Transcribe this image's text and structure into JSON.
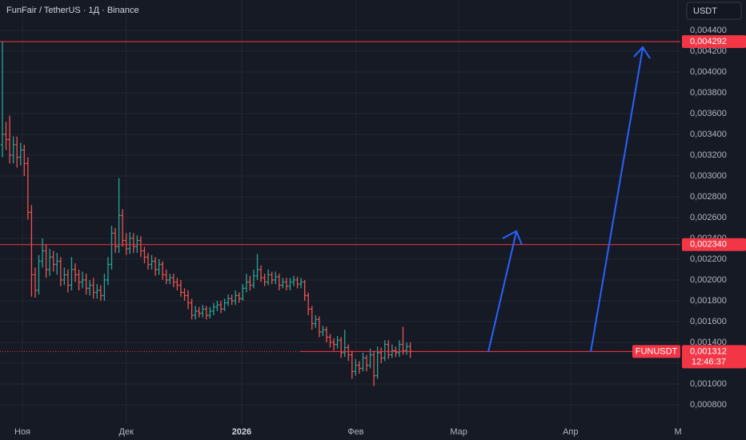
{
  "chart_data": {
    "type": "ohlc",
    "title": "FunFair / TetherUS · 1Д · Binance",
    "currency": "USDT",
    "up_color": "#26a69a",
    "down_color": "#ef5350",
    "level_color": "#f23645",
    "grid": true,
    "open": [
      0.0033,
      0.0034,
      0.00335,
      0.0032,
      0.0033,
      0.00318,
      0.00325,
      0.00312,
      0.00265,
      0.00205,
      0.0019,
      0.00218,
      0.00228,
      0.0021,
      0.00222,
      0.00215,
      0.00218,
      0.002,
      0.00205,
      0.00195,
      0.0021,
      0.00205,
      0.00198,
      0.002,
      0.00192,
      0.00195,
      0.00188,
      0.0019,
      0.00185,
      0.002,
      0.00215,
      0.00245,
      0.00232,
      0.00262,
      0.00238,
      0.0023,
      0.0024,
      0.00232,
      0.00238,
      0.00228,
      0.00222,
      0.00215,
      0.00218,
      0.0021,
      0.00215,
      0.00205,
      0.002,
      0.00202,
      0.00198,
      0.00195,
      0.00188,
      0.00185,
      0.00178,
      0.00166,
      0.0017,
      0.00168,
      0.00172,
      0.00166,
      0.0017,
      0.00174,
      0.00176,
      0.00172,
      0.00178,
      0.00182,
      0.0018,
      0.00185,
      0.00182,
      0.00192,
      0.00198,
      0.00195,
      0.00204,
      0.0021,
      0.00202,
      0.00198,
      0.00205,
      0.002,
      0.00203,
      0.00195,
      0.00198,
      0.00194,
      0.00198,
      0.002,
      0.00196,
      0.00198,
      0.00185,
      0.00172,
      0.00158,
      0.00162,
      0.0015,
      0.00152,
      0.00145,
      0.0014,
      0.00138,
      0.00142,
      0.0013,
      0.00135,
      0.00128,
      0.00112,
      0.00118,
      0.00115,
      0.00125,
      0.00118,
      0.00128,
      0.00108,
      0.0013,
      0.00125,
      0.00138,
      0.00128,
      0.00132,
      0.0013,
      0.00138,
      0.00132,
      0.00136
    ],
    "high": [
      0.00429,
      0.00352,
      0.00358,
      0.00338,
      0.00338,
      0.00332,
      0.0033,
      0.00318,
      0.00272,
      0.00212,
      0.00224,
      0.0024,
      0.00234,
      0.0023,
      0.00228,
      0.00226,
      0.00222,
      0.00212,
      0.0021,
      0.00222,
      0.00216,
      0.0021,
      0.00208,
      0.00206,
      0.002,
      0.00202,
      0.00196,
      0.00195,
      0.00206,
      0.00222,
      0.00252,
      0.0025,
      0.00298,
      0.00268,
      0.00245,
      0.00246,
      0.00245,
      0.00243,
      0.00242,
      0.00232,
      0.00226,
      0.00224,
      0.00222,
      0.0022,
      0.00218,
      0.0021,
      0.00206,
      0.00206,
      0.00202,
      0.002,
      0.00192,
      0.0019,
      0.00182,
      0.00175,
      0.00174,
      0.00176,
      0.00175,
      0.00174,
      0.00178,
      0.0018,
      0.0018,
      0.00182,
      0.00186,
      0.00186,
      0.0019,
      0.00188,
      0.00196,
      0.00206,
      0.00204,
      0.0021,
      0.00225,
      0.00214,
      0.00206,
      0.0021,
      0.00208,
      0.00208,
      0.00206,
      0.00202,
      0.00202,
      0.00202,
      0.00204,
      0.00203,
      0.00202,
      0.002,
      0.00188,
      0.00175,
      0.00166,
      0.00165,
      0.00156,
      0.00155,
      0.00148,
      0.00144,
      0.00146,
      0.00145,
      0.00152,
      0.00138,
      0.00132,
      0.00124,
      0.00122,
      0.0013,
      0.00128,
      0.00134,
      0.00132,
      0.00136,
      0.00135,
      0.00142,
      0.00142,
      0.00138,
      0.00136,
      0.00142,
      0.00155,
      0.0014,
      0.0014
    ],
    "low": [
      0.00318,
      0.00325,
      0.00312,
      0.00312,
      0.00308,
      0.0031,
      0.003,
      0.00258,
      0.00184,
      0.00183,
      0.00186,
      0.00212,
      0.00202,
      0.00204,
      0.00208,
      0.00205,
      0.00194,
      0.00195,
      0.00188,
      0.0019,
      0.00198,
      0.0019,
      0.00192,
      0.00186,
      0.00185,
      0.00182,
      0.00182,
      0.0018,
      0.0018,
      0.00195,
      0.0021,
      0.00226,
      0.00226,
      0.00232,
      0.00224,
      0.00225,
      0.00226,
      0.00226,
      0.00222,
      0.00216,
      0.0021,
      0.0021,
      0.00204,
      0.00205,
      0.002,
      0.00196,
      0.00196,
      0.00193,
      0.0019,
      0.00184,
      0.0018,
      0.00172,
      0.00162,
      0.00162,
      0.00164,
      0.00164,
      0.00162,
      0.00163,
      0.00166,
      0.0017,
      0.00168,
      0.0017,
      0.00175,
      0.00176,
      0.00176,
      0.00178,
      0.0018,
      0.00188,
      0.0019,
      0.00192,
      0.002,
      0.00198,
      0.00194,
      0.00195,
      0.00196,
      0.00196,
      0.0019,
      0.00192,
      0.0019,
      0.0019,
      0.00194,
      0.00192,
      0.00192,
      0.0018,
      0.00166,
      0.00152,
      0.00154,
      0.00145,
      0.00146,
      0.0014,
      0.00135,
      0.00132,
      0.00134,
      0.00125,
      0.00126,
      0.00122,
      0.00105,
      0.00108,
      0.0011,
      0.00112,
      0.00112,
      0.00115,
      0.00098,
      0.00105,
      0.0012,
      0.00122,
      0.00124,
      0.00125,
      0.00126,
      0.00126,
      0.00128,
      0.00128,
      0.00125
    ],
    "close": [
      0.0034,
      0.00335,
      0.0032,
      0.0033,
      0.00318,
      0.00325,
      0.00312,
      0.00265,
      0.00205,
      0.0019,
      0.00218,
      0.00228,
      0.0021,
      0.00222,
      0.00215,
      0.00218,
      0.002,
      0.00205,
      0.00195,
      0.0021,
      0.00205,
      0.00198,
      0.002,
      0.00192,
      0.00195,
      0.00188,
      0.0019,
      0.00185,
      0.002,
      0.00215,
      0.00245,
      0.00232,
      0.00262,
      0.00238,
      0.0023,
      0.0024,
      0.00232,
      0.00238,
      0.00228,
      0.00222,
      0.00215,
      0.00218,
      0.0021,
      0.00215,
      0.00205,
      0.002,
      0.00202,
      0.00198,
      0.00195,
      0.00188,
      0.00185,
      0.00178,
      0.00166,
      0.0017,
      0.00168,
      0.00172,
      0.00166,
      0.0017,
      0.00174,
      0.00176,
      0.00172,
      0.00178,
      0.00182,
      0.0018,
      0.00185,
      0.00182,
      0.00192,
      0.00198,
      0.00195,
      0.00204,
      0.0021,
      0.00202,
      0.00198,
      0.00205,
      0.002,
      0.00203,
      0.00195,
      0.00198,
      0.00194,
      0.00198,
      0.002,
      0.00196,
      0.00198,
      0.00185,
      0.00172,
      0.00158,
      0.00162,
      0.0015,
      0.00152,
      0.00145,
      0.0014,
      0.00138,
      0.00142,
      0.0013,
      0.00135,
      0.00128,
      0.00112,
      0.00118,
      0.00115,
      0.00125,
      0.00118,
      0.00128,
      0.00108,
      0.0013,
      0.00125,
      0.00138,
      0.00128,
      0.00132,
      0.0013,
      0.00138,
      0.00132,
      0.00136,
      0.001312
    ],
    "xlim": [
      -0.66,
      186.15
    ],
    "xticks": [
      {
        "value": 5.5,
        "label": "Ноя"
      },
      {
        "value": 34,
        "label": "Дек"
      },
      {
        "value": 65.7,
        "label": "2026",
        "bold": true
      },
      {
        "value": 97,
        "label": "Фев"
      },
      {
        "value": 125.3,
        "label": "Мар"
      },
      {
        "value": 156,
        "label": "Апр"
      },
      {
        "value": 185.5,
        "label": "М"
      }
    ],
    "ylim": [
      0.000615,
      0.004692
    ],
    "yticks": [
      {
        "value": 0.0008,
        "label": "0,000800"
      },
      {
        "value": 0.001,
        "label": "0,001000"
      },
      {
        "value": 0.0012,
        "label": "0,001200"
      },
      {
        "value": 0.0014,
        "label": "0,001400"
      },
      {
        "value": 0.0016,
        "label": "0,001600"
      },
      {
        "value": 0.0018,
        "label": "0,001800"
      },
      {
        "value": 0.002,
        "label": "0,002000"
      },
      {
        "value": 0.0022,
        "label": "0,002200"
      },
      {
        "value": 0.0024,
        "label": "0,002400"
      },
      {
        "value": 0.0026,
        "label": "0,002600"
      },
      {
        "value": 0.0028,
        "label": "0,002800"
      },
      {
        "value": 0.003,
        "label": "0,003000"
      },
      {
        "value": 0.0032,
        "label": "0,003200"
      },
      {
        "value": 0.0034,
        "label": "0,003400"
      },
      {
        "value": 0.0036,
        "label": "0,003600"
      },
      {
        "value": 0.0038,
        "label": "0,003800"
      },
      {
        "value": 0.004,
        "label": "0,004000"
      },
      {
        "value": 0.0042,
        "label": "0,004200"
      },
      {
        "value": 0.0044,
        "label": "0,004400"
      }
    ],
    "levels": [
      {
        "value": 0.004292,
        "label": "0,004292"
      },
      {
        "value": 0.00234,
        "label": "0,002340"
      }
    ],
    "last_price": {
      "value": 0.001312,
      "label": "0,001312",
      "symbol": "FUNUSDT",
      "countdown": "12:46:37"
    }
  }
}
